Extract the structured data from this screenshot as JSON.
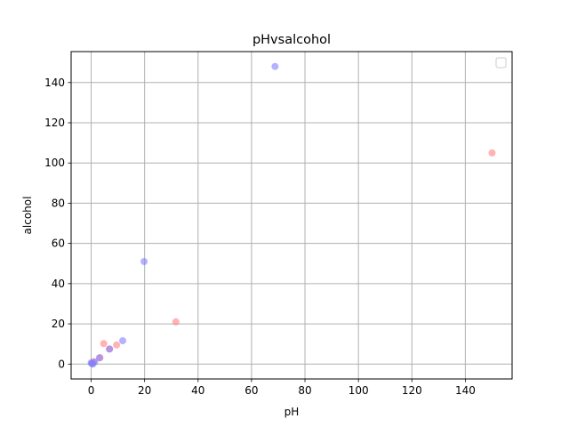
{
  "chart_data": {
    "type": "scatter",
    "title": "pHvsalcohol",
    "xlabel": "pH",
    "ylabel": "alcohol",
    "xlim": [
      -7.5,
      157.5
    ],
    "ylim": [
      -7.4,
      155.4
    ],
    "xticks": [
      0,
      20,
      40,
      60,
      80,
      100,
      120,
      140
    ],
    "yticks": [
      0,
      20,
      40,
      60,
      80,
      100,
      120,
      140
    ],
    "grid": true,
    "legend": {
      "placement": "top-right",
      "entries": []
    },
    "series": [
      {
        "color": "#ff8080",
        "alpha": 0.6,
        "points": [
          {
            "x": 150,
            "y": 105
          },
          {
            "x": 31.7,
            "y": 21
          },
          {
            "x": 9.5,
            "y": 9.5
          },
          {
            "x": 4.7,
            "y": 10.2
          },
          {
            "x": 3.3,
            "y": 3.2
          },
          {
            "x": 6.8,
            "y": 7.5
          },
          {
            "x": 0.5,
            "y": 0.5
          },
          {
            "x": 0.9,
            "y": 1.2
          }
        ]
      },
      {
        "color": "#8080ff",
        "alpha": 0.6,
        "points": [
          {
            "x": 68.8,
            "y": 148
          },
          {
            "x": 19.8,
            "y": 51
          },
          {
            "x": 11.8,
            "y": 11.6
          },
          {
            "x": 6.9,
            "y": 7.5
          },
          {
            "x": 3.1,
            "y": 3.1
          },
          {
            "x": 1.3,
            "y": 1.0
          },
          {
            "x": 0.2,
            "y": 0.3
          },
          {
            "x": 0.0,
            "y": 0.6
          },
          {
            "x": 0.6,
            "y": 0.0
          }
        ]
      }
    ]
  }
}
